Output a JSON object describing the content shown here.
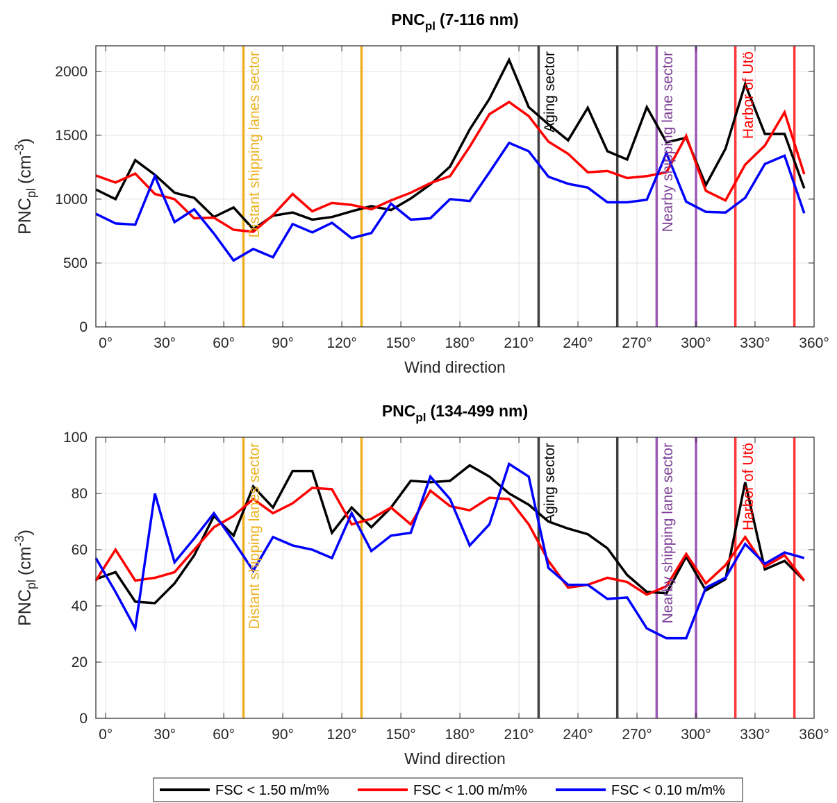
{
  "x_label": "Wind direction",
  "x_ticks": [
    "0°",
    "30°",
    "60°",
    "90°",
    "120°",
    "150°",
    "180°",
    "210°",
    "240°",
    "270°",
    "300°",
    "330°",
    "360°"
  ],
  "legend": [
    {
      "label": "FSC < 1.50 m/m%",
      "color": "#000000"
    },
    {
      "label": "FSC < 1.00 m/m%",
      "color": "#ff0000"
    },
    {
      "label": "FSC < 0.10 m/m%",
      "color": "#0000ff"
    }
  ],
  "chart_data": [
    {
      "type": "line",
      "title_main": "PNC",
      "title_sub": "pl",
      "title_rest": "(7-116 nm)",
      "ylabel_main": "PNC",
      "ylabel_sub": "pl",
      "ylabel_unit_pre": "(cm",
      "ylabel_unit_sup": "-3",
      "ylabel_unit_post": ")",
      "xlim": [
        -5,
        360
      ],
      "ylim": [
        0,
        2200
      ],
      "y_ticks": [
        0,
        500,
        1000,
        1500,
        2000
      ],
      "x_tick_values": [
        0,
        30,
        60,
        90,
        120,
        150,
        180,
        210,
        240,
        270,
        300,
        330,
        360
      ],
      "x": [
        -5,
        5,
        15,
        25,
        35,
        45,
        55,
        65,
        75,
        85,
        95,
        105,
        115,
        125,
        135,
        145,
        155,
        165,
        175,
        185,
        195,
        205,
        215,
        225,
        235,
        245,
        255,
        265,
        275,
        285,
        295,
        305,
        315,
        325,
        335,
        345,
        355
      ],
      "grid": true,
      "series": [
        {
          "name": "FSC < 1.50 m/m%",
          "color": "#000000",
          "values": [
            1075,
            1000,
            1305,
            1190,
            1050,
            1010,
            860,
            935,
            765,
            870,
            895,
            840,
            860,
            905,
            945,
            915,
            1005,
            1115,
            1255,
            1545,
            1785,
            2090,
            1720,
            1585,
            1460,
            1715,
            1375,
            1310,
            1720,
            1445,
            1480,
            1110,
            1395,
            1900,
            1510,
            1510,
            1085
          ]
        },
        {
          "name": "FSC < 1.00 m/m%",
          "color": "#ff0000",
          "values": [
            1185,
            1130,
            1200,
            1040,
            1000,
            850,
            855,
            760,
            745,
            875,
            1040,
            905,
            970,
            955,
            920,
            990,
            1050,
            1125,
            1180,
            1410,
            1665,
            1760,
            1650,
            1450,
            1355,
            1210,
            1220,
            1165,
            1180,
            1210,
            1495,
            1065,
            990,
            1270,
            1420,
            1680,
            1195
          ]
        },
        {
          "name": "FSC < 0.10 m/m%",
          "color": "#0000ff",
          "values": [
            885,
            810,
            800,
            1180,
            820,
            920,
            730,
            520,
            610,
            545,
            805,
            740,
            815,
            695,
            735,
            965,
            840,
            850,
            1000,
            985,
            1210,
            1440,
            1375,
            1175,
            1120,
            1090,
            975,
            975,
            995,
            1360,
            980,
            900,
            895,
            1010,
            1275,
            1340,
            890
          ]
        }
      ],
      "vlines": [
        {
          "x": 70,
          "color": "#edb120"
        },
        {
          "x": 130,
          "color": "#edb120"
        },
        {
          "x": 220,
          "color": "#404040"
        },
        {
          "x": 260,
          "color": "#404040"
        },
        {
          "x": 280,
          "color": "#9b59b6"
        },
        {
          "x": 300,
          "color": "#9b59b6"
        },
        {
          "x": 320,
          "color": "#ff3b3b"
        },
        {
          "x": 350,
          "color": "#ff3b3b"
        }
      ],
      "annotations": [
        {
          "text": "Distant shipping lanes sector",
          "x": 73,
          "color": "#edb120"
        },
        {
          "text": "Aging sector",
          "x": 223,
          "color": "#000000"
        },
        {
          "text": "Nearby shipping lane sector",
          "x": 283,
          "color": "#7e3f98"
        },
        {
          "text": "Harbor of Utö",
          "x": 324,
          "color": "#ff0000"
        }
      ]
    },
    {
      "type": "line",
      "title_main": "PNC",
      "title_sub": "pl",
      "title_rest": "(134-499 nm)",
      "ylabel_main": "PNC",
      "ylabel_sub": "pl",
      "ylabel_unit_pre": "(cm",
      "ylabel_unit_sup": "-3",
      "ylabel_unit_post": ")",
      "xlim": [
        -5,
        360
      ],
      "ylim": [
        0,
        100
      ],
      "y_ticks": [
        0,
        20,
        40,
        60,
        80,
        100
      ],
      "x_tick_values": [
        0,
        30,
        60,
        90,
        120,
        150,
        180,
        210,
        240,
        270,
        300,
        330,
        360
      ],
      "x": [
        -5,
        5,
        15,
        25,
        35,
        45,
        55,
        65,
        75,
        85,
        95,
        105,
        115,
        125,
        135,
        145,
        155,
        165,
        175,
        185,
        195,
        205,
        215,
        225,
        235,
        245,
        255,
        265,
        275,
        285,
        295,
        305,
        315,
        325,
        335,
        345,
        355
      ],
      "grid": true,
      "series": [
        {
          "name": "FSC < 1.50 m/m%",
          "color": "#000000",
          "values": [
            49.5,
            52,
            41.5,
            41,
            48,
            58,
            72,
            65,
            82.5,
            75,
            88,
            88,
            66,
            75,
            68,
            75,
            84.5,
            84,
            84.5,
            90,
            86,
            80,
            76,
            70,
            67.5,
            65.5,
            60.5,
            51,
            45,
            44.5,
            57.5,
            45.5,
            49.5,
            84,
            53,
            56,
            49
          ]
        },
        {
          "name": "FSC < 1.00 m/m%",
          "color": "#ff0000",
          "values": [
            49,
            60,
            49,
            50,
            52,
            60,
            68,
            72,
            78,
            73,
            76.5,
            82,
            81.5,
            69,
            71,
            75,
            69,
            81,
            75.5,
            74,
            78.5,
            78,
            69,
            56,
            46.5,
            47.5,
            50,
            48.5,
            44,
            47,
            58.5,
            48,
            54.5,
            64.5,
            54,
            58,
            49
          ]
        },
        {
          "name": "FSC < 0.10 m/m%",
          "color": "#0000ff",
          "values": [
            57,
            45,
            32,
            80,
            55.5,
            64,
            73,
            63,
            52.5,
            64.5,
            61.5,
            60,
            57,
            73,
            59.5,
            65,
            66,
            86,
            78,
            61.5,
            69,
            90.5,
            86,
            53.5,
            47.5,
            47.5,
            42.5,
            43,
            32,
            28.5,
            28.5,
            46.5,
            50,
            62,
            55,
            59,
            57
          ]
        }
      ],
      "vlines": [
        {
          "x": 70,
          "color": "#edb120"
        },
        {
          "x": 130,
          "color": "#edb120"
        },
        {
          "x": 220,
          "color": "#404040"
        },
        {
          "x": 260,
          "color": "#404040"
        },
        {
          "x": 280,
          "color": "#9b59b6"
        },
        {
          "x": 300,
          "color": "#9b59b6"
        },
        {
          "x": 320,
          "color": "#ff3b3b"
        },
        {
          "x": 350,
          "color": "#ff3b3b"
        }
      ],
      "annotations": [
        {
          "text": "Distant shipping lanes sector",
          "x": 73,
          "color": "#edb120"
        },
        {
          "text": "Aging sector",
          "x": 223,
          "color": "#000000"
        },
        {
          "text": "Nearby shipping lane sector",
          "x": 283,
          "color": "#7e3f98"
        },
        {
          "text": "Harbor of Utö",
          "x": 324,
          "color": "#ff0000"
        }
      ]
    }
  ]
}
